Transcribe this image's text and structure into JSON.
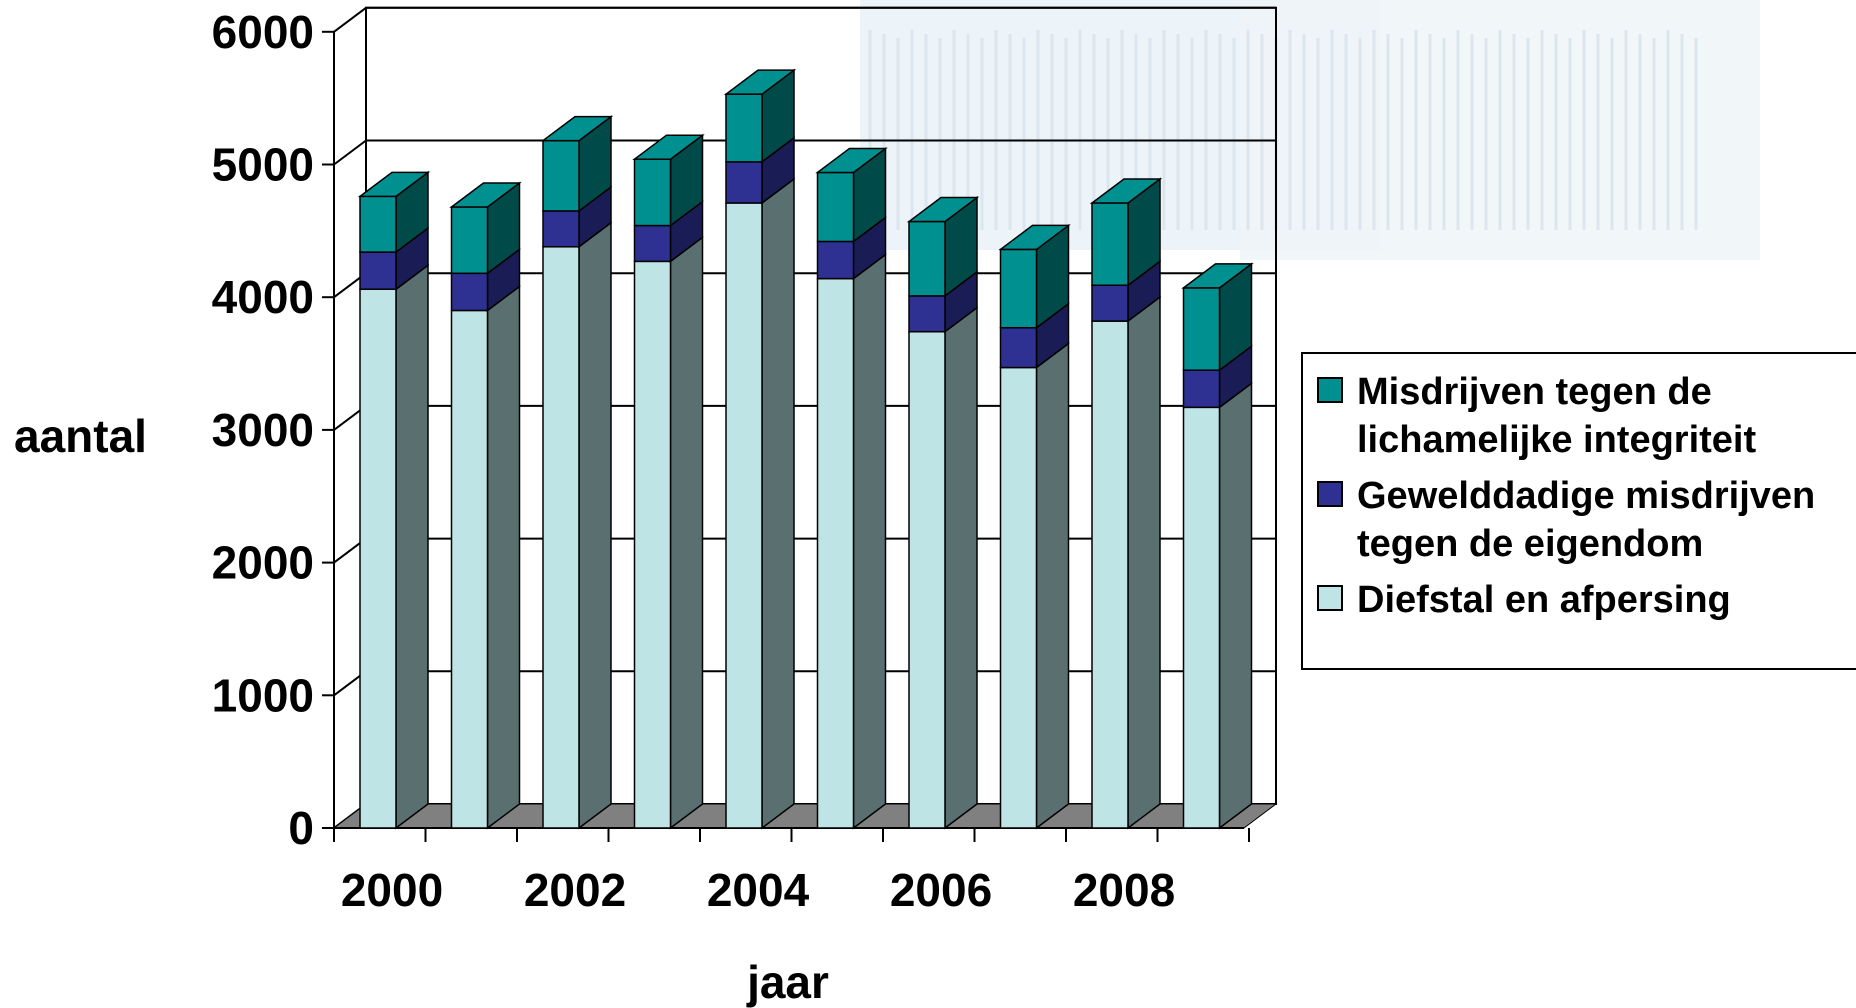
{
  "chart_data": {
    "type": "bar",
    "stacked": true,
    "three_d": true,
    "categories": [
      "2000",
      "2001",
      "2002",
      "2003",
      "2004",
      "2005",
      "2006",
      "2007",
      "2008",
      "2009"
    ],
    "x_tick_labels": [
      "2000",
      "2002",
      "2004",
      "2006",
      "2008"
    ],
    "xlabel": "jaar",
    "ylabel": "aantal",
    "ylim": [
      0,
      6000
    ],
    "yticks": [
      0,
      1000,
      2000,
      3000,
      4000,
      5000,
      6000
    ],
    "grid": true,
    "legend_position": "right",
    "series": [
      {
        "name": "Diefstal en afpersing",
        "color": "#BEE4E6",
        "side_color": "#5A7070",
        "values": [
          4060,
          3900,
          4380,
          4270,
          4710,
          4140,
          3740,
          3470,
          3820,
          3170
        ]
      },
      {
        "name": "Gewelddadige misdrijven tegen de eigendom",
        "color": "#2E3192",
        "side_color": "#1A1C55",
        "values": [
          280,
          280,
          270,
          270,
          310,
          280,
          270,
          300,
          270,
          280
        ]
      },
      {
        "name": "Misdrijven tegen de lichamelijke integriteit",
        "color": "#009090",
        "side_color": "#004A4A",
        "values": [
          420,
          500,
          530,
          500,
          510,
          520,
          560,
          590,
          620,
          620
        ]
      }
    ]
  },
  "legend": {
    "items": [
      {
        "label": "Misdrijven tegen de lichamelijke integriteit",
        "color": "#009090"
      },
      {
        "label": "Gewelddadige misdrijven tegen de eigendom",
        "color": "#2E3192"
      },
      {
        "label": "Diefstal en afpersing",
        "color": "#BEE4E6"
      }
    ]
  }
}
